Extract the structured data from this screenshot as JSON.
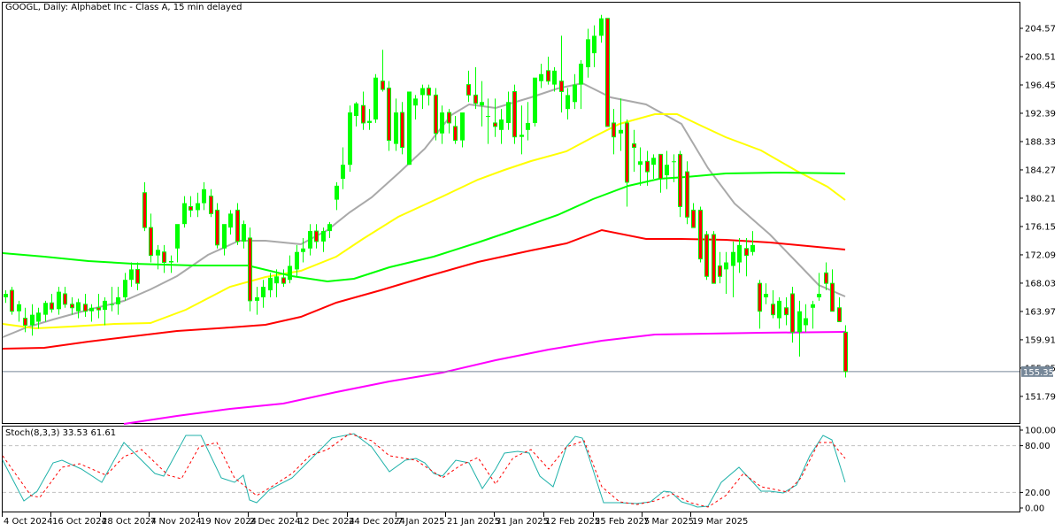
{
  "header": {
    "title": "GOOGL, Daily:  Alphabet Inc - Class A, 15 min delayed"
  },
  "stoch_header": {
    "label": "Stoch(8,3,3) 33.53 61.61"
  },
  "colors": {
    "bull": "#00ff00",
    "bear_fill": "#ff0000",
    "bear_border": "#00ff00",
    "ma_gray": "#a9a9a9",
    "ma_yellow": "#ffff00",
    "ma_green": "#00ff00",
    "ma_red": "#ff0000",
    "ma_magenta": "#ff00ff",
    "stoch_main": "#20b2aa",
    "stoch_signal": "#ff0000",
    "price_line": "#778899",
    "grid_level": "#c0c0c0"
  },
  "price_axis": {
    "ticks": [
      "204.57",
      "200.51",
      "196.45",
      "192.39",
      "188.33",
      "184.27",
      "180.21",
      "176.15",
      "172.09",
      "168.03",
      "163.97",
      "159.91",
      "155.85",
      "151.79"
    ],
    "current_price": "155.35"
  },
  "stoch_axis": {
    "ticks": [
      "100.00",
      "80.00",
      "20.00",
      "0.00"
    ]
  },
  "time_axis": {
    "ticks": [
      "4 Oct 2024",
      "16 Oct 2024",
      "28 Oct 2024",
      "7 Nov 2024",
      "19 Nov 2024",
      "2 Dec 2024",
      "12 Dec 2024",
      "24 Dec 2024",
      "7 Jan 2025",
      "21 Jan 2025",
      "31 Jan 2025",
      "12 Feb 2025",
      "25 Feb 2025",
      "7 Mar 2025",
      "19 Mar 2025"
    ]
  },
  "chart_data": [
    {
      "type": "candlestick",
      "title": "GOOGL, Daily: Alphabet Inc - Class A, 15 min delayed",
      "xlabel": "",
      "ylabel": "Price",
      "ylim": [
        149.5,
        206.5
      ],
      "grid": false,
      "current_price": 155.35,
      "x_tick_labels": [
        "4 Oct 2024",
        "16 Oct 2024",
        "28 Oct 2024",
        "7 Nov 2024",
        "19 Nov 2024",
        "2 Dec 2024",
        "12 Dec 2024",
        "24 Dec 2024",
        "7 Jan 2025",
        "21 Jan 2025",
        "31 Jan 2025",
        "12 Feb 2025",
        "25 Feb 2025",
        "7 Mar 2025",
        "19 Mar 2025"
      ],
      "y_tick_labels": [
        204.57,
        200.51,
        196.45,
        192.39,
        188.33,
        184.27,
        180.21,
        176.15,
        172.09,
        168.03,
        163.97,
        159.91,
        155.85,
        151.79
      ],
      "ohlc": [
        [
          166.0,
          167.0,
          165.2,
          166.5
        ],
        [
          167.0,
          167.5,
          163.5,
          164.0
        ],
        [
          164.0,
          165.5,
          162.5,
          165.0
        ],
        [
          163.0,
          164.5,
          161.0,
          162.0
        ],
        [
          162.0,
          165.0,
          160.5,
          163.5
        ],
        [
          162.5,
          164.5,
          161.5,
          163.8
        ],
        [
          163.5,
          165.5,
          162.5,
          165.2
        ],
        [
          165.2,
          166.5,
          163.8,
          164.3
        ],
        [
          164.3,
          167.5,
          163.5,
          166.8
        ],
        [
          166.5,
          167.5,
          164.5,
          165.0
        ],
        [
          165.0,
          166.0,
          163.5,
          164.5
        ],
        [
          164.0,
          165.8,
          163.0,
          165.3
        ],
        [
          165.0,
          166.5,
          163.2,
          164.0
        ],
        [
          164.0,
          165.0,
          162.5,
          164.5
        ],
        [
          164.5,
          166.5,
          163.0,
          164.2
        ],
        [
          164.2,
          166.0,
          162.0,
          165.5
        ],
        [
          165.0,
          167.5,
          164.0,
          165.0
        ],
        [
          165.0,
          167.5,
          163.5,
          166.0
        ],
        [
          166.0,
          169.5,
          165.5,
          168.5
        ],
        [
          168.5,
          171.0,
          167.5,
          170.0
        ],
        [
          170.0,
          171.0,
          167.0,
          168.0
        ],
        [
          181.0,
          182.5,
          175.5,
          176.0
        ],
        [
          176.0,
          178.0,
          171.0,
          172.0
        ],
        [
          172.0,
          173.5,
          170.0,
          172.8
        ],
        [
          172.5,
          173.5,
          169.5,
          171.0
        ],
        [
          171.0,
          172.0,
          169.5,
          171.2
        ],
        [
          173.0,
          175.0,
          171.0,
          176.5
        ],
        [
          176.5,
          180.5,
          176.0,
          179.5
        ],
        [
          179.0,
          180.5,
          177.5,
          178.5
        ],
        [
          178.5,
          181.0,
          177.5,
          179.5
        ],
        [
          179.5,
          182.5,
          178.5,
          181.5
        ],
        [
          180.5,
          181.5,
          177.5,
          178.0
        ],
        [
          178.5,
          179.5,
          173.0,
          173.5
        ],
        [
          173.0,
          176.0,
          172.0,
          176.5
        ],
        [
          176.0,
          178.5,
          175.0,
          178.0
        ],
        [
          178.5,
          179.5,
          173.5,
          174.0
        ],
        [
          174.0,
          177.0,
          173.0,
          176.5
        ],
        [
          174.5,
          176.0,
          164.0,
          165.5
        ],
        [
          165.5,
          167.5,
          163.5,
          166.0
        ],
        [
          166.0,
          168.5,
          164.5,
          167.5
        ],
        [
          167.0,
          169.5,
          166.0,
          168.8
        ],
        [
          168.0,
          170.0,
          166.0,
          169.0
        ],
        [
          168.8,
          170.0,
          167.5,
          168.0
        ],
        [
          168.5,
          172.0,
          168.0,
          170.5
        ],
        [
          170.0,
          173.5,
          169.0,
          172.5
        ],
        [
          172.5,
          174.5,
          171.0,
          173.0
        ],
        [
          173.0,
          176.5,
          172.0,
          175.5
        ],
        [
          175.5,
          176.5,
          173.0,
          174.0
        ],
        [
          174.0,
          176.0,
          172.5,
          175.5
        ],
        [
          175.5,
          176.8,
          174.5,
          176.5
        ],
        [
          180.0,
          182.5,
          178.5,
          182.0
        ],
        [
          183.0,
          187.5,
          181.5,
          185.0
        ],
        [
          185.0,
          193.5,
          184.0,
          192.5
        ],
        [
          192.0,
          194.0,
          190.5,
          193.8
        ],
        [
          193.5,
          195.5,
          190.0,
          191.0
        ],
        [
          191.0,
          193.0,
          190.0,
          191.3
        ],
        [
          191.5,
          198.0,
          191.0,
          197.5
        ],
        [
          197.0,
          201.5,
          195.5,
          195.8
        ],
        [
          196.0,
          197.0,
          187.0,
          188.5
        ],
        [
          188.0,
          194.5,
          187.0,
          192.5
        ],
        [
          192.5,
          194.0,
          186.5,
          187.5
        ],
        [
          185.0,
          195.5,
          185.0,
          195.5
        ],
        [
          193.5,
          195.0,
          191.5,
          194.5
        ],
        [
          195.0,
          196.5,
          193.0,
          196.0
        ],
        [
          196.0,
          196.5,
          193.5,
          195.0
        ],
        [
          195.0,
          196.0,
          188.5,
          189.5
        ],
        [
          189.5,
          193.5,
          188.0,
          192.5
        ],
        [
          192.5,
          193.0,
          189.5,
          191.0
        ],
        [
          190.5,
          192.0,
          188.0,
          188.5
        ],
        [
          188.5,
          192.0,
          187.5,
          192.5
        ],
        [
          196.5,
          198.5,
          194.0,
          195.0
        ],
        [
          195.0,
          199.0,
          193.0,
          193.8
        ],
        [
          193.5,
          197.0,
          190.5,
          194.0
        ],
        [
          192.0,
          194.5,
          188.0,
          192.0
        ],
        [
          191.0,
          194.5,
          189.0,
          190.5
        ],
        [
          190.0,
          193.0,
          188.0,
          191.5
        ],
        [
          191.0,
          195.5,
          190.0,
          194.0
        ],
        [
          195.5,
          196.5,
          188.0,
          189.0
        ],
        [
          189.0,
          193.5,
          186.5,
          189.3
        ],
        [
          190.0,
          194.0,
          188.5,
          191.0
        ],
        [
          191.0,
          197.0,
          190.5,
          197.5
        ],
        [
          197.0,
          199.5,
          196.0,
          198.0
        ],
        [
          198.5,
          200.5,
          196.5,
          197.0
        ],
        [
          196.5,
          199.0,
          195.5,
          198.5
        ],
        [
          197.0,
          203.5,
          192.5,
          195.5
        ],
        [
          193.0,
          196.0,
          191.5,
          195.0
        ],
        [
          194.0,
          198.0,
          193.0,
          196.5
        ],
        [
          196.5,
          200.0,
          193.0,
          199.5
        ],
        [
          199.0,
          204.5,
          197.5,
          203.0
        ],
        [
          201.0,
          205.0,
          199.0,
          203.5
        ],
        [
          203.5,
          206.5,
          202.5,
          206.0
        ],
        [
          206.0,
          206.0,
          196.0,
          190.5
        ],
        [
          191.0,
          193.0,
          186.5,
          189.0
        ],
        [
          189.5,
          194.5,
          187.0,
          190.0
        ],
        [
          191.0,
          191.5,
          179.0,
          182.5
        ],
        [
          188.0,
          190.0,
          184.0,
          187.5
        ],
        [
          185.0,
          187.5,
          182.0,
          185.5
        ],
        [
          185.5,
          187.0,
          182.0,
          184.0
        ],
        [
          185.0,
          186.5,
          183.0,
          186.0
        ],
        [
          186.5,
          186.5,
          181.0,
          183.0
        ],
        [
          183.5,
          187.0,
          181.5,
          185.0
        ],
        [
          185.5,
          186.5,
          182.5,
          185.5
        ],
        [
          186.5,
          187.0,
          177.5,
          179.0
        ],
        [
          184.0,
          185.5,
          176.5,
          177.5
        ],
        [
          178.5,
          179.5,
          176.5,
          176.0
        ],
        [
          178.5,
          179.0,
          171.0,
          171.5
        ],
        [
          175.0,
          175.5,
          168.5,
          169.0
        ],
        [
          175.0,
          175.5,
          168.5,
          168.0
        ],
        [
          170.5,
          172.5,
          168.0,
          169.0
        ],
        [
          170.0,
          172.5,
          166.5,
          171.0
        ],
        [
          170.5,
          174.0,
          166.0,
          172.5
        ],
        [
          171.0,
          174.5,
          169.5,
          173.5
        ],
        [
          173.0,
          174.5,
          169.0,
          172.0
        ],
        [
          172.5,
          175.5,
          172.0,
          173.5
        ],
        [
          168.0,
          168.5,
          161.5,
          164.0
        ],
        [
          166.0,
          168.0,
          165.0,
          166.5
        ],
        [
          165.0,
          167.0,
          163.0,
          163.5
        ],
        [
          163.0,
          166.0,
          161.5,
          165.5
        ],
        [
          164.5,
          166.0,
          162.0,
          163.5
        ],
        [
          166.5,
          167.5,
          159.5,
          161.0
        ],
        [
          161.0,
          165.5,
          157.5,
          164.0
        ],
        [
          162.0,
          165.0,
          161.0,
          163.0
        ],
        [
          164.5,
          165.5,
          161.5,
          165.0
        ],
        [
          166.0,
          169.5,
          165.5,
          166.5
        ],
        [
          169.5,
          171.0,
          167.0,
          168.0
        ],
        [
          168.0,
          170.0,
          165.5,
          164.0
        ],
        [
          164.5,
          166.0,
          162.5,
          162.5
        ],
        [
          161.0,
          162.0,
          154.5,
          155.35
        ]
      ],
      "series": [
        {
          "name": "MA gray (fast)",
          "color": "#a9a9a9",
          "y_start": 161.8,
          "y_peak": 196.8,
          "y_end": 166.5
        },
        {
          "name": "MA yellow",
          "color": "#ffff00",
          "y_start": 162.3,
          "y_peak": 192.4,
          "y_end": 180.0
        },
        {
          "name": "MA green",
          "color": "#00ff00",
          "y_start": 172.3,
          "y_min": 168.6,
          "y_end": 183.8
        },
        {
          "name": "MA red",
          "color": "#ff0000",
          "y_start": 158.5,
          "y_peak": 174.3,
          "y_end": 173.0
        },
        {
          "name": "MA magenta",
          "color": "#ff00ff",
          "y_start": 149.5,
          "y_end": 161.2
        }
      ]
    },
    {
      "type": "line",
      "title": "Stoch(8,3,3) 33.53 61.61",
      "ylim": [
        0,
        100
      ],
      "levels": [
        80,
        20
      ],
      "y_tick_labels": [
        100.0,
        80.0,
        20.0,
        0.0
      ],
      "series": [
        {
          "name": "%K",
          "color": "#20b2aa",
          "last": 33.53
        },
        {
          "name": "%D",
          "color": "#ff0000",
          "style": "dashed",
          "last": 61.61
        }
      ]
    }
  ]
}
